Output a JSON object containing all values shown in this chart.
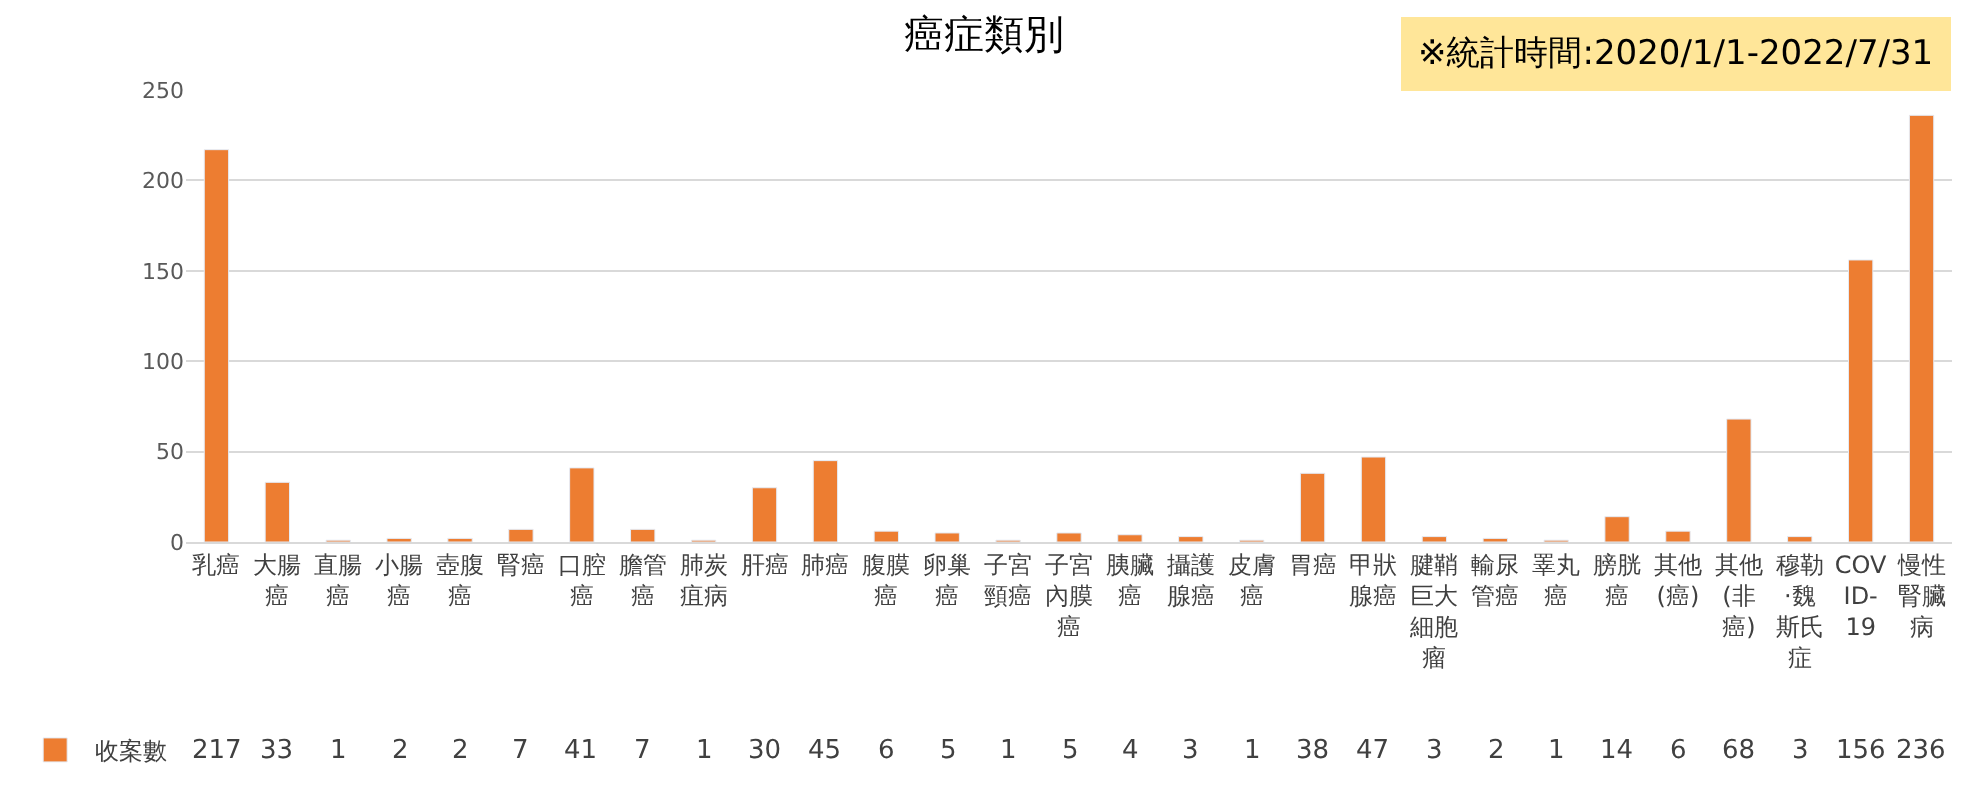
{
  "chart_data": {
    "type": "bar",
    "title": "癌症類別",
    "annotations": [
      "※統計時間:2020/1/1-2022/7/31"
    ],
    "categories": [
      "乳癌",
      "大腸癌",
      "直腸癌",
      "小腸癌",
      "壺腹癌",
      "腎癌",
      "口腔癌",
      "膽管癌",
      "肺炭疽病",
      "肝癌",
      "肺癌",
      "腹膜癌",
      "卵巢癌",
      "子宮頸癌",
      "子宮內膜癌",
      "胰臟癌",
      "攝護腺癌",
      "皮膚癌",
      "胃癌",
      "甲狀腺癌",
      "腱鞘巨大細胞瘤",
      "輸尿管癌",
      "睪丸癌",
      "膀胱癌",
      "其他(癌)",
      "其他(非癌)",
      "穆勒·魏斯氏症",
      "COVID-19",
      "慢性腎臟病"
    ],
    "series": [
      {
        "name": "收案數",
        "color": "#ed7d31",
        "values": [
          217,
          33,
          1,
          2,
          2,
          7,
          41,
          7,
          1,
          30,
          45,
          6,
          5,
          1,
          5,
          4,
          3,
          1,
          38,
          47,
          3,
          2,
          1,
          14,
          6,
          68,
          3,
          156,
          236
        ]
      }
    ],
    "ylim": [
      0,
      250
    ],
    "yticks": [
      0,
      50,
      100,
      150,
      200,
      250
    ],
    "grid": "y",
    "legend": "bottom left",
    "data_labels": true
  }
}
